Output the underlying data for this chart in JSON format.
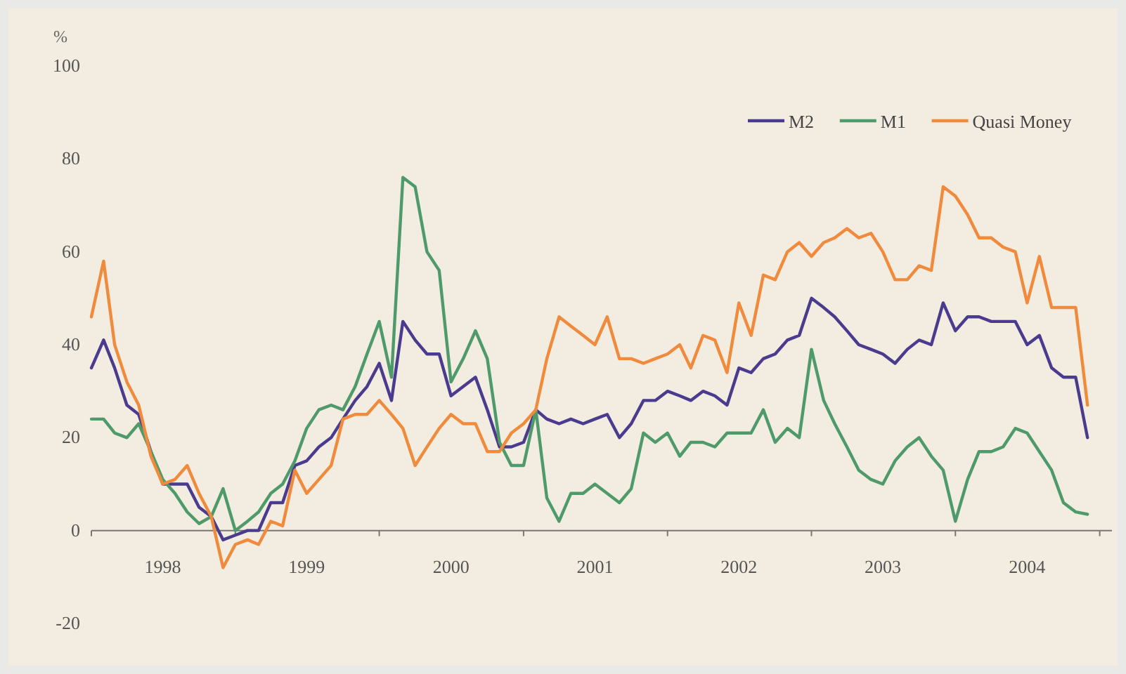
{
  "chart_data": {
    "type": "line",
    "ylabel": "%",
    "x": [
      "1998-01",
      "1998-02",
      "1998-03",
      "1998-04",
      "1998-05",
      "1998-06",
      "1998-07",
      "1998-08",
      "1998-09",
      "1998-10",
      "1998-11",
      "1998-12",
      "1999-01",
      "1999-02",
      "1999-03",
      "1999-04",
      "1999-05",
      "1999-06",
      "1999-07",
      "1999-08",
      "1999-09",
      "1999-10",
      "1999-11",
      "1999-12",
      "2000-01",
      "2000-02",
      "2000-03",
      "2000-04",
      "2000-05",
      "2000-06",
      "2000-07",
      "2000-08",
      "2000-09",
      "2000-10",
      "2000-11",
      "2000-12",
      "2001-01",
      "2001-02",
      "2001-03",
      "2001-04",
      "2001-05",
      "2001-06",
      "2001-07",
      "2001-08",
      "2001-09",
      "2001-10",
      "2001-11",
      "2001-12",
      "2002-01",
      "2002-02",
      "2002-03",
      "2002-04",
      "2002-05",
      "2002-06",
      "2002-07",
      "2002-08",
      "2002-09",
      "2002-10",
      "2002-11",
      "2002-12",
      "2003-01",
      "2003-02",
      "2003-03",
      "2003-04",
      "2003-05",
      "2003-06",
      "2003-07",
      "2003-08",
      "2003-09",
      "2003-10",
      "2003-11",
      "2003-12",
      "2004-01",
      "2004-02",
      "2004-03",
      "2004-04",
      "2004-05",
      "2004-06",
      "2004-07",
      "2004-08",
      "2004-09",
      "2004-10",
      "2004-11",
      "2004-12"
    ],
    "series": [
      {
        "name": "M2",
        "color": "#4b3b8f",
        "values": [
          35,
          41,
          35,
          27,
          25,
          17,
          10,
          10,
          10,
          5,
          3,
          -2,
          -1,
          0,
          0,
          6,
          6,
          14,
          15,
          18,
          20,
          24,
          28,
          31,
          36,
          28,
          45,
          41,
          38,
          38,
          29,
          31,
          33,
          26,
          18,
          18,
          19,
          26,
          24,
          23,
          24,
          23,
          24,
          25,
          20,
          23,
          28,
          28,
          30,
          29,
          28,
          30,
          29,
          27,
          35,
          34,
          37,
          38,
          41,
          42,
          50,
          48,
          46,
          43,
          40,
          39,
          38,
          36,
          39,
          41,
          40,
          49,
          43,
          46,
          46,
          45,
          45,
          45,
          40,
          42,
          35,
          33,
          33,
          20
        ]
      },
      {
        "name": "M1",
        "color": "#4f9a6a",
        "values": [
          24,
          24,
          21,
          20,
          23,
          17,
          11,
          8,
          4,
          1.5,
          3,
          9,
          0,
          2,
          4,
          8,
          10,
          15,
          22,
          26,
          27,
          26,
          31,
          38,
          45,
          33,
          76,
          74,
          60,
          56,
          32,
          37,
          43,
          37,
          19,
          14,
          14,
          26,
          7,
          2,
          8,
          8,
          10,
          8,
          6,
          9,
          21,
          19,
          21,
          16,
          19,
          19,
          18,
          21,
          21,
          21,
          26,
          19,
          22,
          20,
          39,
          28,
          23,
          18,
          13,
          11,
          10,
          15,
          18,
          20,
          16,
          13,
          2,
          11,
          17,
          17,
          18,
          22,
          21,
          17,
          13,
          6,
          4,
          3.5
        ]
      },
      {
        "name": "Quasi Money",
        "color": "#f08a3c",
        "values": [
          46,
          58,
          40,
          32,
          27,
          16,
          10,
          11,
          14,
          8,
          3,
          -8,
          -3,
          -2,
          -3,
          2,
          1,
          13,
          8,
          11,
          14,
          24,
          25,
          25,
          28,
          25,
          22,
          14,
          18,
          22,
          25,
          23,
          23,
          17,
          17,
          21,
          23,
          26,
          37,
          46,
          44,
          42,
          40,
          46,
          37,
          37,
          36,
          37,
          38,
          40,
          35,
          42,
          41,
          34,
          49,
          42,
          55,
          54,
          60,
          62,
          59,
          62,
          63,
          65,
          63,
          64,
          60,
          54,
          54,
          57,
          56,
          74,
          72,
          68,
          63,
          63,
          61,
          60,
          49,
          59,
          48,
          48,
          48,
          27
        ]
      }
    ],
    "xlim": [
      "1998-01",
      "2005-02"
    ],
    "xticks": [
      {
        "value": "1998-01",
        "label": null
      },
      {
        "value": "1998-07",
        "label": "1998"
      },
      {
        "value": "1999-01",
        "label": null
      },
      {
        "value": "1999-07",
        "label": "1999"
      },
      {
        "value": "2000-01",
        "label": null
      },
      {
        "value": "2000-07",
        "label": "2000"
      },
      {
        "value": "2001-01",
        "label": null
      },
      {
        "value": "2001-07",
        "label": "2001"
      },
      {
        "value": "2002-01",
        "label": null
      },
      {
        "value": "2002-07",
        "label": "2002"
      },
      {
        "value": "2003-01",
        "label": null
      },
      {
        "value": "2003-07",
        "label": "2003"
      },
      {
        "value": "2004-01",
        "label": null
      },
      {
        "value": "2004-07",
        "label": "2004"
      },
      {
        "value": "2005-01",
        "label": null
      }
    ],
    "ylim": [
      -20,
      100
    ],
    "yticks": [
      -20,
      0,
      20,
      40,
      60,
      80,
      100
    ],
    "grid": false,
    "legend": "top right",
    "marker": "none",
    "line_style": "solid"
  }
}
